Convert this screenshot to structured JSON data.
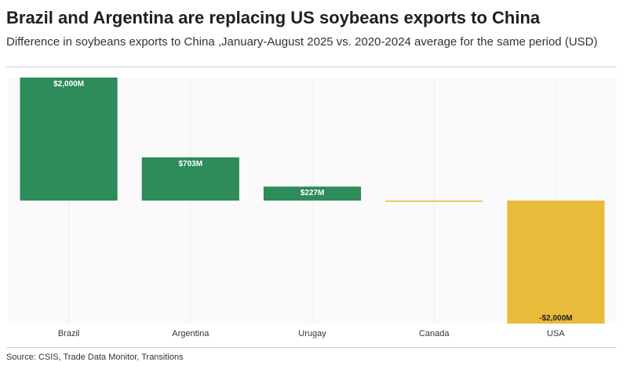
{
  "title": "Brazil and Argentina are replacing US soybeans exports to China",
  "subtitle": "Difference in soybeans exports to China ,January-August 2025 vs. 2020-2024 average for the same period (USD)",
  "source": "Source: CSIS, Trade Data Monitor, Transitions",
  "colors": {
    "positive": "#2e8b5a",
    "negative": "#e8bb3a",
    "grid": "#ececec",
    "background": "#fafafa"
  },
  "chart_data": {
    "type": "bar",
    "categories": [
      "Brazil",
      "Argentina",
      "Urugay",
      "Canada",
      "USA"
    ],
    "values": [
      2000,
      703,
      227,
      -10,
      -2000
    ],
    "labels": [
      "$2,000M",
      "$703M",
      "$227M",
      "",
      "-$2,000M"
    ],
    "unit": "USD millions",
    "ylim": [
      -2000,
      2000
    ],
    "grid": true,
    "legend": "none"
  }
}
